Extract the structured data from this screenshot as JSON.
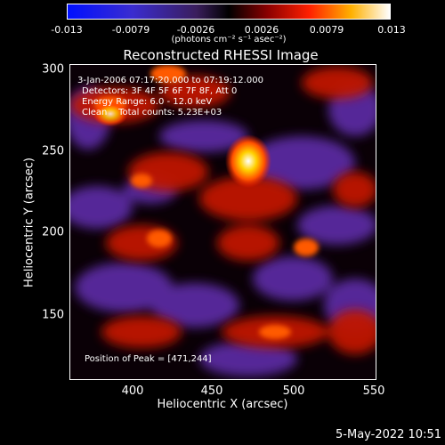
{
  "colorbar": {
    "ticks": [
      "-0.013",
      "-0.0079",
      "-0.0026",
      "0.0026",
      "0.0079",
      "0.013"
    ],
    "unit_label": "(photons cm⁻² s⁻¹ asec⁻²)"
  },
  "title": "Reconstructed RHESSI Image",
  "annotations": {
    "time_range": "3-Jan-2006 07:17:20.000 to 07:19:12.000",
    "detectors": "Detectors: 3F 4F 5F 6F 7F 8F, Att 0",
    "energy_range": "Energy Range: 6.0 - 12.0 keV",
    "clean_counts": "Clean    Total counts: 5.23E+03",
    "peak_position": "Position of Peak = [471,244]"
  },
  "axes": {
    "xlabel": "Heliocentric X (arcsec)",
    "ylabel": "Heliocentric Y (arcsec)",
    "xticks": [
      "400",
      "450",
      "500",
      "550"
    ],
    "yticks": [
      "300",
      "250",
      "200",
      "150"
    ]
  },
  "timestamp": "5-May-2022 10:51"
}
